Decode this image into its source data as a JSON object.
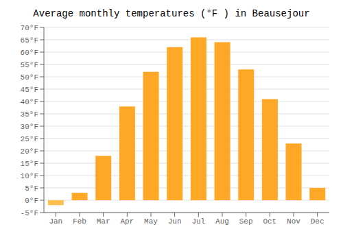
{
  "chart_data": {
    "type": "bar",
    "title": "Average monthly temperatures (°F ) in Beausejour",
    "categories": [
      "Jan",
      "Feb",
      "Mar",
      "Apr",
      "May",
      "Jun",
      "Jul",
      "Aug",
      "Sep",
      "Oct",
      "Nov",
      "Dec"
    ],
    "values": [
      -2,
      3,
      18,
      38,
      52,
      62,
      66,
      64,
      53,
      41,
      23,
      5
    ],
    "colors": [
      "#FFC04D",
      "#FFA726",
      "#FFA726",
      "#FFA726",
      "#FFA726",
      "#FFA726",
      "#FFA726",
      "#FFA726",
      "#FFA726",
      "#FFA726",
      "#FFA726",
      "#FFA726"
    ],
    "ylim": [
      -5,
      70
    ],
    "yticks": [
      {
        "value": -5,
        "label": "-5°F"
      },
      {
        "value": 0,
        "label": "0°F"
      },
      {
        "value": 5,
        "label": "5°F"
      },
      {
        "value": 10,
        "label": "10°F"
      },
      {
        "value": 15,
        "label": "15°F"
      },
      {
        "value": 20,
        "label": "20°F"
      },
      {
        "value": 25,
        "label": "25°F"
      },
      {
        "value": 30,
        "label": "30°F"
      },
      {
        "value": 35,
        "label": "35°F"
      },
      {
        "value": 40,
        "label": "40°F"
      },
      {
        "value": 45,
        "label": "45°F"
      },
      {
        "value": 50,
        "label": "50°F"
      },
      {
        "value": 55,
        "label": "55°F"
      },
      {
        "value": 60,
        "label": "60°F"
      },
      {
        "value": 65,
        "label": "65°F"
      },
      {
        "value": 70,
        "label": "70°F"
      }
    ],
    "grid": true
  }
}
